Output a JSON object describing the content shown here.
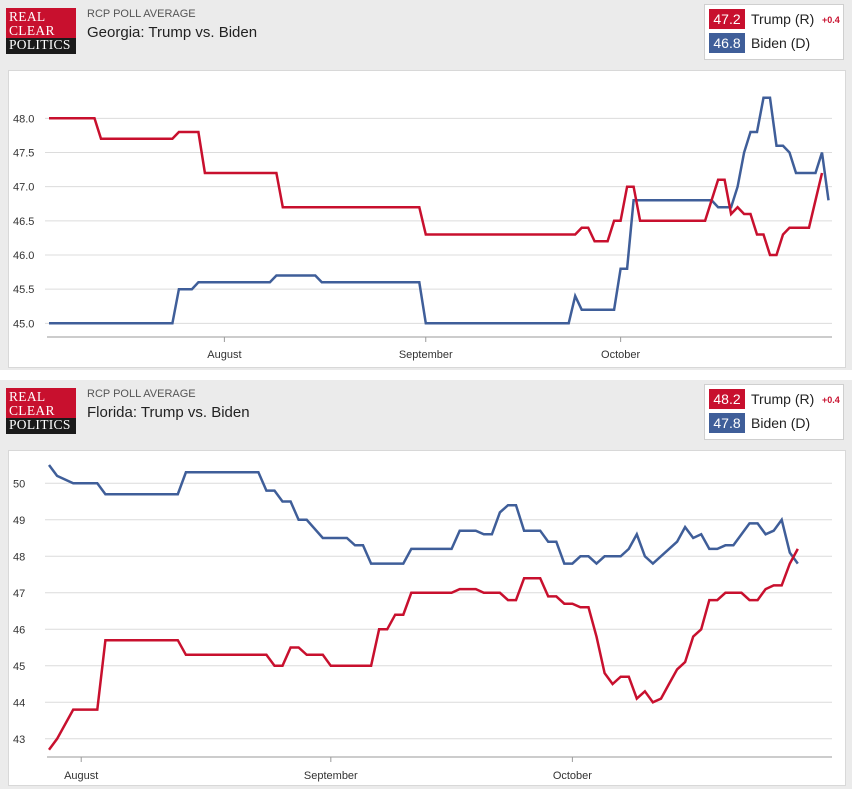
{
  "chart_data": [
    {
      "type": "line",
      "kicker": "RCP POLL AVERAGE",
      "title": "Georgia: Trump vs. Biden",
      "logo_text": [
        "REAL",
        "CLEAR",
        "POLITICS"
      ],
      "legend": [
        {
          "value": "47.2",
          "name": "Trump (R)",
          "change": "+0.4",
          "color": "#c8102e"
        },
        {
          "value": "46.8",
          "name": "Biden (D)",
          "change": "",
          "color": "#3f5e99"
        }
      ],
      "ylim": [
        44.8,
        48.4
      ],
      "yticks": [
        "45.0",
        "45.5",
        "46.0",
        "46.5",
        "47.0",
        "47.5",
        "48.0"
      ],
      "x_range": [
        "2020-07-05",
        "2020-11-01"
      ],
      "month_ticks": [
        {
          "date": "2020-08-01",
          "label": "August"
        },
        {
          "date": "2020-09-01",
          "label": "September"
        },
        {
          "date": "2020-10-01",
          "label": "October"
        }
      ],
      "series": [
        {
          "name": "Trump (R)",
          "color": "#c8102e",
          "points": [
            [
              "2020-07-05",
              48.0
            ],
            [
              "2020-07-12",
              48.0
            ],
            [
              "2020-07-13",
              47.7
            ],
            [
              "2020-07-24",
              47.7
            ],
            [
              "2020-07-25",
              47.8
            ],
            [
              "2020-07-28",
              47.8
            ],
            [
              "2020-07-29",
              47.2
            ],
            [
              "2020-08-09",
              47.2
            ],
            [
              "2020-08-10",
              46.7
            ],
            [
              "2020-08-31",
              46.7
            ],
            [
              "2020-09-01",
              46.3
            ],
            [
              "2020-09-24",
              46.3
            ],
            [
              "2020-09-25",
              46.4
            ],
            [
              "2020-09-26",
              46.4
            ],
            [
              "2020-09-27",
              46.2
            ],
            [
              "2020-09-29",
              46.2
            ],
            [
              "2020-09-30",
              46.5
            ],
            [
              "2020-10-01",
              46.5
            ],
            [
              "2020-10-02",
              47.0
            ],
            [
              "2020-10-03",
              47.0
            ],
            [
              "2020-10-04",
              46.5
            ],
            [
              "2020-10-14",
              46.5
            ],
            [
              "2020-10-16",
              47.1
            ],
            [
              "2020-10-17",
              47.1
            ],
            [
              "2020-10-18",
              46.6
            ],
            [
              "2020-10-19",
              46.7
            ],
            [
              "2020-10-20",
              46.6
            ],
            [
              "2020-10-21",
              46.6
            ],
            [
              "2020-10-22",
              46.3
            ],
            [
              "2020-10-23",
              46.3
            ],
            [
              "2020-10-24",
              46.0
            ],
            [
              "2020-10-25",
              46.0
            ],
            [
              "2020-10-26",
              46.3
            ],
            [
              "2020-10-27",
              46.4
            ],
            [
              "2020-10-30",
              46.4
            ],
            [
              "2020-10-31",
              46.8
            ],
            [
              "2020-11-01",
              47.2
            ]
          ]
        },
        {
          "name": "Biden (D)",
          "color": "#3f5e99",
          "points": [
            [
              "2020-07-05",
              45.0
            ],
            [
              "2020-07-24",
              45.0
            ],
            [
              "2020-07-25",
              45.5
            ],
            [
              "2020-07-27",
              45.5
            ],
            [
              "2020-07-28",
              45.6
            ],
            [
              "2020-08-08",
              45.6
            ],
            [
              "2020-08-09",
              45.7
            ],
            [
              "2020-08-15",
              45.7
            ],
            [
              "2020-08-16",
              45.6
            ],
            [
              "2020-08-31",
              45.6
            ],
            [
              "2020-09-01",
              45.0
            ],
            [
              "2020-09-23",
              45.0
            ],
            [
              "2020-09-24",
              45.4
            ],
            [
              "2020-09-25",
              45.2
            ],
            [
              "2020-09-30",
              45.2
            ],
            [
              "2020-10-01",
              45.8
            ],
            [
              "2020-10-02",
              45.8
            ],
            [
              "2020-10-03",
              46.8
            ],
            [
              "2020-10-15",
              46.8
            ],
            [
              "2020-10-16",
              46.7
            ],
            [
              "2020-10-18",
              46.7
            ],
            [
              "2020-10-19",
              47.0
            ],
            [
              "2020-10-20",
              47.5
            ],
            [
              "2020-10-21",
              47.8
            ],
            [
              "2020-10-22",
              47.8
            ],
            [
              "2020-10-23",
              48.3
            ],
            [
              "2020-10-24",
              48.3
            ],
            [
              "2020-10-25",
              47.6
            ],
            [
              "2020-10-26",
              47.6
            ],
            [
              "2020-10-27",
              47.5
            ],
            [
              "2020-10-28",
              47.2
            ],
            [
              "2020-10-31",
              47.2
            ],
            [
              "2020-11-01",
              47.5
            ],
            [
              "2020-11-02",
              46.8
            ]
          ]
        }
      ]
    },
    {
      "type": "line",
      "kicker": "RCP POLL AVERAGE",
      "title": "Florida: Trump vs. Biden",
      "logo_text": [
        "REAL",
        "CLEAR",
        "POLITICS"
      ],
      "legend": [
        {
          "value": "48.2",
          "name": "Trump (R)",
          "change": "+0.4",
          "color": "#c8102e"
        },
        {
          "value": "47.8",
          "name": "Biden (D)",
          "change": "",
          "color": "#3f5e99"
        }
      ],
      "ylim": [
        42.5,
        50.5
      ],
      "yticks": [
        "43",
        "44",
        "45",
        "46",
        "47",
        "48",
        "49",
        "50"
      ],
      "x_range": [
        "2020-07-28",
        "2020-11-01"
      ],
      "month_ticks": [
        {
          "date": "2020-08-01",
          "label": "August"
        },
        {
          "date": "2020-09-01",
          "label": "September"
        },
        {
          "date": "2020-10-01",
          "label": "October"
        }
      ],
      "series": [
        {
          "name": "Trump (R)",
          "color": "#c8102e",
          "points": [
            [
              "2020-07-28",
              42.7
            ],
            [
              "2020-07-29",
              43.0
            ],
            [
              "2020-07-31",
              43.8
            ],
            [
              "2020-08-03",
              43.8
            ],
            [
              "2020-08-04",
              45.7
            ],
            [
              "2020-08-13",
              45.7
            ],
            [
              "2020-08-14",
              45.3
            ],
            [
              "2020-08-24",
              45.3
            ],
            [
              "2020-08-25",
              45.0
            ],
            [
              "2020-08-26",
              45.0
            ],
            [
              "2020-08-27",
              45.5
            ],
            [
              "2020-08-28",
              45.5
            ],
            [
              "2020-08-29",
              45.3
            ],
            [
              "2020-08-31",
              45.3
            ],
            [
              "2020-09-01",
              45.0
            ],
            [
              "2020-09-06",
              45.0
            ],
            [
              "2020-09-07",
              46.0
            ],
            [
              "2020-09-08",
              46.0
            ],
            [
              "2020-09-09",
              46.4
            ],
            [
              "2020-09-10",
              46.4
            ],
            [
              "2020-09-11",
              47.0
            ],
            [
              "2020-09-16",
              47.0
            ],
            [
              "2020-09-17",
              47.1
            ],
            [
              "2020-09-19",
              47.1
            ],
            [
              "2020-09-20",
              47.0
            ],
            [
              "2020-09-22",
              47.0
            ],
            [
              "2020-09-23",
              46.8
            ],
            [
              "2020-09-24",
              46.8
            ],
            [
              "2020-09-25",
              47.4
            ],
            [
              "2020-09-27",
              47.4
            ],
            [
              "2020-09-28",
              46.9
            ],
            [
              "2020-09-29",
              46.9
            ],
            [
              "2020-09-30",
              46.7
            ],
            [
              "2020-10-01",
              46.7
            ],
            [
              "2020-10-02",
              46.6
            ],
            [
              "2020-10-03",
              46.6
            ],
            [
              "2020-10-04",
              45.8
            ],
            [
              "2020-10-05",
              44.8
            ],
            [
              "2020-10-06",
              44.5
            ],
            [
              "2020-10-07",
              44.7
            ],
            [
              "2020-10-08",
              44.7
            ],
            [
              "2020-10-09",
              44.1
            ],
            [
              "2020-10-10",
              44.3
            ],
            [
              "2020-10-11",
              44.0
            ],
            [
              "2020-10-12",
              44.1
            ],
            [
              "2020-10-13",
              44.5
            ],
            [
              "2020-10-14",
              44.9
            ],
            [
              "2020-10-15",
              45.1
            ],
            [
              "2020-10-16",
              45.8
            ],
            [
              "2020-10-17",
              46.0
            ],
            [
              "2020-10-18",
              46.8
            ],
            [
              "2020-10-19",
              46.8
            ],
            [
              "2020-10-20",
              47.0
            ],
            [
              "2020-10-22",
              47.0
            ],
            [
              "2020-10-23",
              46.8
            ],
            [
              "2020-10-24",
              46.8
            ],
            [
              "2020-10-25",
              47.1
            ],
            [
              "2020-10-26",
              47.2
            ],
            [
              "2020-10-27",
              47.2
            ],
            [
              "2020-10-28",
              47.8
            ],
            [
              "2020-10-29",
              48.2
            ]
          ]
        },
        {
          "name": "Biden (D)",
          "color": "#3f5e99",
          "points": [
            [
              "2020-07-28",
              50.5
            ],
            [
              "2020-07-29",
              50.2
            ],
            [
              "2020-07-31",
              50.0
            ],
            [
              "2020-08-03",
              50.0
            ],
            [
              "2020-08-04",
              49.7
            ],
            [
              "2020-08-13",
              49.7
            ],
            [
              "2020-08-14",
              50.3
            ],
            [
              "2020-08-23",
              50.3
            ],
            [
              "2020-08-24",
              49.8
            ],
            [
              "2020-08-25",
              49.8
            ],
            [
              "2020-08-26",
              49.5
            ],
            [
              "2020-08-27",
              49.5
            ],
            [
              "2020-08-28",
              49.0
            ],
            [
              "2020-08-29",
              49.0
            ],
            [
              "2020-08-31",
              48.5
            ],
            [
              "2020-09-03",
              48.5
            ],
            [
              "2020-09-04",
              48.3
            ],
            [
              "2020-09-05",
              48.3
            ],
            [
              "2020-09-06",
              47.8
            ],
            [
              "2020-09-10",
              47.8
            ],
            [
              "2020-09-11",
              48.2
            ],
            [
              "2020-09-16",
              48.2
            ],
            [
              "2020-09-17",
              48.7
            ],
            [
              "2020-09-19",
              48.7
            ],
            [
              "2020-09-20",
              48.6
            ],
            [
              "2020-09-21",
              48.6
            ],
            [
              "2020-09-22",
              49.2
            ],
            [
              "2020-09-23",
              49.4
            ],
            [
              "2020-09-24",
              49.4
            ],
            [
              "2020-09-25",
              48.7
            ],
            [
              "2020-09-27",
              48.7
            ],
            [
              "2020-09-28",
              48.4
            ],
            [
              "2020-09-29",
              48.4
            ],
            [
              "2020-09-30",
              47.8
            ],
            [
              "2020-10-01",
              47.8
            ],
            [
              "2020-10-02",
              48.0
            ],
            [
              "2020-10-03",
              48.0
            ],
            [
              "2020-10-04",
              47.8
            ],
            [
              "2020-10-05",
              48.0
            ],
            [
              "2020-10-07",
              48.0
            ],
            [
              "2020-10-08",
              48.2
            ],
            [
              "2020-10-09",
              48.6
            ],
            [
              "2020-10-10",
              48.0
            ],
            [
              "2020-10-11",
              47.8
            ],
            [
              "2020-10-14",
              48.4
            ],
            [
              "2020-10-15",
              48.8
            ],
            [
              "2020-10-16",
              48.5
            ],
            [
              "2020-10-17",
              48.6
            ],
            [
              "2020-10-18",
              48.2
            ],
            [
              "2020-10-19",
              48.2
            ],
            [
              "2020-10-20",
              48.3
            ],
            [
              "2020-10-21",
              48.3
            ],
            [
              "2020-10-22",
              48.6
            ],
            [
              "2020-10-23",
              48.9
            ],
            [
              "2020-10-24",
              48.9
            ],
            [
              "2020-10-25",
              48.6
            ],
            [
              "2020-10-26",
              48.7
            ],
            [
              "2020-10-27",
              49.0
            ],
            [
              "2020-10-28",
              48.1
            ],
            [
              "2020-10-29",
              47.8
            ]
          ]
        }
      ]
    }
  ]
}
